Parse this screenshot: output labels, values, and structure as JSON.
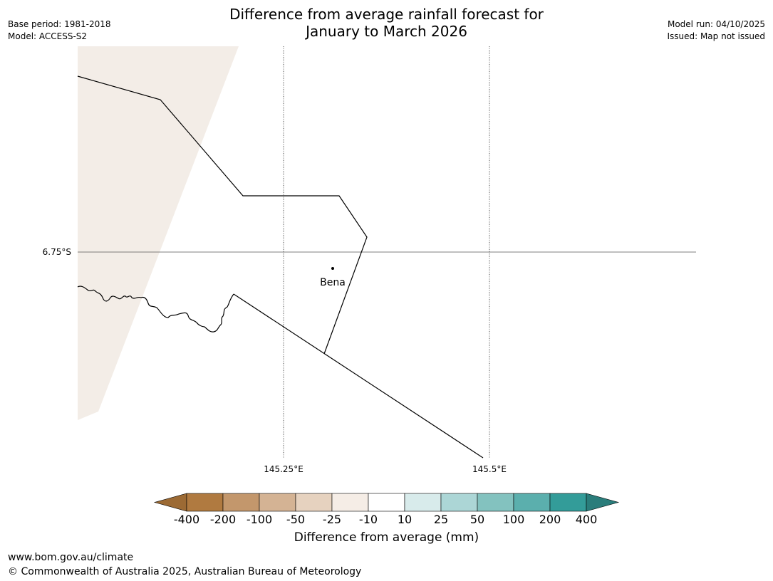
{
  "title_line1": "Difference from average rainfall forecast for",
  "title_line2": "January to March 2026",
  "meta": {
    "base_period": "Base period: 1981-2018",
    "model": "Model: ACCESS-S2",
    "model_run": "Model run: 04/10/2025",
    "issued": "Issued: Map not issued"
  },
  "axes": {
    "lat_label": "6.75°S",
    "lon_label_1": "145.25°E",
    "lon_label_2": "145.5°E"
  },
  "place": {
    "name": "Bena"
  },
  "colorbar": {
    "title": "Difference from average (mm)",
    "ticks": [
      "-400",
      "-200",
      "-100",
      "-50",
      "-25",
      "-10",
      "10",
      "25",
      "50",
      "100",
      "200",
      "400"
    ],
    "colors": [
      "#9c6a34",
      "#b07a40",
      "#c3976c",
      "#d4b394",
      "#e6d2bf",
      "#f5ede6",
      "#ffffff",
      "#d8ebeb",
      "#acd6d6",
      "#83c2bf",
      "#5bafad",
      "#339c99",
      "#2a7d7b"
    ]
  },
  "map_fill_color": "#f3ede7",
  "footer": {
    "url": "www.bom.gov.au/climate",
    "copyright": "© Commonwealth of Australia 2025, Australian Bureau of Meteorology"
  }
}
